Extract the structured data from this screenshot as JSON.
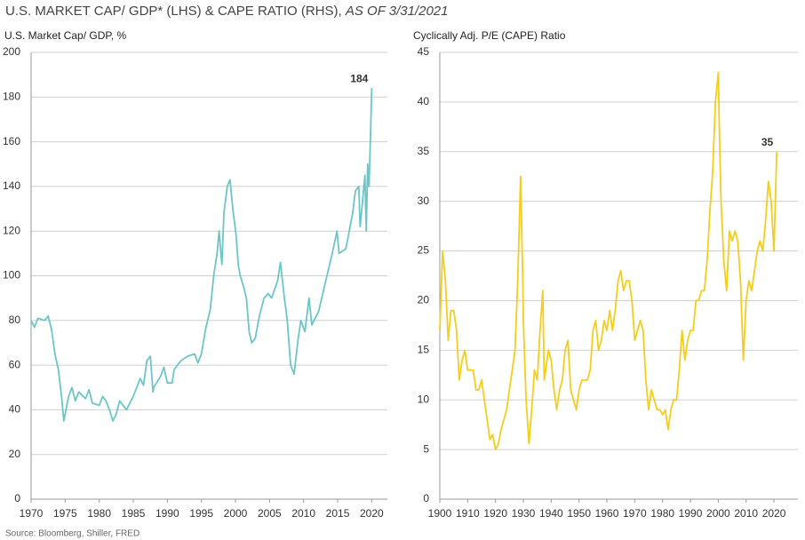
{
  "title": "U.S. MARKET CAP/ GDP* (LHS) & CAPE RATIO (RHS),",
  "title_note": "AS OF 3/31/2021",
  "source": "Source: Bloomberg, Shiller, FRED",
  "chart_data": [
    {
      "type": "line",
      "y_label": "U.S. Market Cap/ GDP, %",
      "xlim": [
        1970,
        2022.3
      ],
      "xticks": [
        1970,
        1975,
        1980,
        1985,
        1990,
        1995,
        2000,
        2005,
        2010,
        2015,
        2020
      ],
      "ylim": [
        0,
        200
      ],
      "yticks": [
        0,
        20,
        40,
        60,
        80,
        100,
        120,
        140,
        160,
        180,
        200
      ],
      "grid": true,
      "annotation": "184",
      "annotation_color": "#2b8383",
      "series": [
        {
          "color": "#6cc6c8",
          "x": [
            1970,
            1970.5,
            1971,
            1972,
            1972.5,
            1973,
            1973.5,
            1974,
            1974.5,
            1974.8,
            1975,
            1975.5,
            1976,
            1976.5,
            1977,
            1978,
            1978.5,
            1979,
            1980,
            1980.5,
            1981,
            1981.5,
            1982,
            1982.5,
            1983,
            1984,
            1985,
            1986,
            1986.5,
            1987,
            1987.5,
            1987.9,
            1988,
            1989,
            1989.5,
            1990,
            1990.7,
            1991,
            1992,
            1993,
            1994,
            1994.5,
            1995,
            1995.6,
            1996.3,
            1996.8,
            1997.3,
            1997.6,
            1998,
            1998.3,
            1998.8,
            1999.2,
            1999.6,
            2000.1,
            2000.4,
            2000.7,
            2001.2,
            2001.6,
            2002,
            2002.4,
            2002.9,
            2003.5,
            2004.2,
            2004.8,
            2005.3,
            2006.2,
            2006.6,
            2007.1,
            2007.6,
            2008.1,
            2008.6,
            2009.2,
            2009.6,
            2010.2,
            2010.8,
            2011.2,
            2012.2,
            2013.2,
            2014.2,
            2014.9,
            2015.2,
            2016.2,
            2017.2,
            2017.6,
            2018.1,
            2018.3,
            2018.7,
            2019.0,
            2019.2,
            2019.4,
            2019.6,
            2019.8,
            2020.0
          ],
          "values": [
            80,
            77,
            81,
            80,
            82,
            76,
            65,
            58,
            45,
            35,
            38,
            46,
            50,
            44,
            48,
            45,
            49,
            43,
            42,
            46,
            44,
            40,
            35,
            38,
            44,
            40,
            46,
            54,
            51,
            62,
            64,
            48,
            50,
            55,
            59,
            52,
            52,
            58,
            62,
            64,
            65,
            61,
            65,
            76,
            85,
            100,
            110,
            120,
            105,
            128,
            140,
            143,
            130,
            118,
            105,
            100,
            95,
            90,
            75,
            70,
            72,
            82,
            90,
            92,
            90,
            98,
            106,
            92,
            80,
            60,
            56,
            72,
            80,
            75,
            90,
            78,
            84,
            97,
            110,
            120,
            110,
            112,
            128,
            138,
            140,
            122,
            135,
            145,
            120,
            150,
            140,
            160,
            184
          ]
        }
      ]
    },
    {
      "type": "line",
      "y_label": "Cyclically Adj. P/E (CAPE) Ratio",
      "xlim": [
        1900,
        2028.6
      ],
      "xticks": [
        1900,
        1910,
        1920,
        1930,
        1940,
        1950,
        1960,
        1970,
        1980,
        1990,
        2000,
        2010,
        2020
      ],
      "ylim": [
        0,
        45
      ],
      "yticks": [
        0,
        5,
        10,
        15,
        20,
        25,
        30,
        35,
        40,
        45
      ],
      "grid": true,
      "annotation": "35",
      "annotation_color": "#8a8a8a",
      "series": [
        {
          "color": "#f5cd1c",
          "x": [
            1900,
            1901,
            1902,
            1903,
            1904,
            1905,
            1906,
            1907,
            1908,
            1909,
            1910,
            1911,
            1912,
            1913,
            1914,
            1915,
            1916,
            1917,
            1918,
            1919,
            1920,
            1921,
            1922,
            1923,
            1924,
            1925,
            1926,
            1927,
            1928,
            1929,
            1929.8,
            1930,
            1931,
            1932,
            1933,
            1934,
            1935,
            1936,
            1937,
            1937.5,
            1938,
            1939,
            1940,
            1941,
            1942,
            1943,
            1944,
            1945,
            1946,
            1947,
            1948,
            1949,
            1950,
            1951,
            1952,
            1953,
            1954,
            1955,
            1956,
            1957,
            1958,
            1959,
            1960,
            1961,
            1962,
            1963,
            1964,
            1965,
            1966,
            1967,
            1968,
            1969,
            1970,
            1971,
            1972,
            1973,
            1974,
            1975,
            1976,
            1977,
            1978,
            1979,
            1980,
            1981,
            1982,
            1983,
            1984,
            1985,
            1986,
            1987,
            1988,
            1989,
            1990,
            1991,
            1992,
            1993,
            1994,
            1995,
            1996,
            1997,
            1998,
            1999,
            2000,
            2000.5,
            2001,
            2002,
            2003,
            2004,
            2005,
            2006,
            2007,
            2008,
            2009,
            2010,
            2011,
            2012,
            2013,
            2014,
            2015,
            2016,
            2017,
            2018,
            2019,
            2020,
            2020.5,
            2021
          ],
          "values": [
            17,
            25,
            22,
            16,
            19,
            19,
            17,
            12,
            14,
            15,
            13,
            13,
            13,
            11,
            11,
            12,
            10,
            8,
            6,
            6.5,
            5,
            5.5,
            7,
            8,
            9,
            11,
            13,
            15,
            22,
            32.5,
            22,
            18,
            10,
            5.6,
            9,
            13,
            12,
            17,
            21,
            12,
            13,
            15,
            14,
            11,
            9,
            11,
            12,
            15,
            16,
            11,
            10,
            9,
            11,
            12,
            12,
            12,
            13,
            17,
            18,
            15,
            16,
            18,
            17,
            19,
            17,
            19,
            22,
            23,
            21,
            22,
            22,
            20,
            16,
            17,
            18,
            17,
            12,
            9,
            11,
            10,
            9,
            9,
            8.5,
            9,
            7,
            9,
            10,
            10,
            13,
            17,
            14,
            16,
            17,
            17,
            20,
            20,
            21,
            21,
            24,
            29,
            33,
            40,
            43,
            36,
            30,
            24,
            21,
            27,
            26,
            27,
            26,
            22,
            14,
            20,
            22,
            21,
            23,
            25,
            26,
            25,
            28,
            32,
            30,
            25,
            30,
            35
          ]
        }
      ]
    }
  ]
}
